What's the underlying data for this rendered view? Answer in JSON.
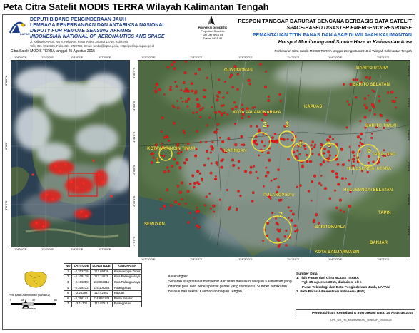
{
  "page_title": "Peta Citra Satelit MODIS TERRA Wilayah Kalimantan Tengah",
  "header": {
    "logo_text": "LAPAN",
    "institution": {
      "line1": "DEPUTI BIDANG PENGINDERAAN JAUH",
      "line2": "LEMBAGA PENERBANGAN DAN ANTARIKSA NASIONAL",
      "line3": "DEPUTY FOR REMOTE SENSING AFFAIRS",
      "line4": "INDONESIAN NATIONAL OF AERONAUTICS AND SPACE",
      "address1": "Jl. Kalisari LAPAN, NO 8, Pekayon, Pasar Rebo, Jakarta 13710, Indonesia",
      "address2": "Telp. 021-8710065, Faks. 021-8722733, Email: simba@lapan.go.id, Http://pusfatja.lapan.go.id"
    },
    "projection": {
      "title": "PROYEKSI GEODETIK",
      "line1": "Projection Geodetic",
      "line2": "DATUM WGS 84",
      "line3": "Datum WGS 84"
    },
    "response": {
      "line1": "RESPON TANGGAP DARURAT BENCANA BERBASIS DATA SATELIT",
      "line2": "SPACE-BASED DISASTER EMERGENCY RESPONSE",
      "line3": "PEMANTAUAN TITIK PANAS DAN ASAP DI WILAYAH KALIMANTAN",
      "line4": "Hotspot Monitoring and Smoke Haze in Kalimantan Area"
    }
  },
  "left_map": {
    "caption": "Citra Satelit MODIS TERRA tanggal 25 Agustus 2015",
    "top_ticks": [
      "108°0'0\"E",
      "111°0'0\"E",
      "114°0'0\"E",
      "117°0'0\"E"
    ],
    "bottom_ticks": [
      "108°0'0\"E",
      "111°0'0\"E",
      "114°0'0\"E",
      "117°0'0\"E"
    ],
    "left_ticks": [
      "3°0'0\"N",
      "0°0'0\"",
      "3°0'0\"S"
    ]
  },
  "right_map": {
    "caption": "Perbesaran Citra Satelit MODIS TERRA  tanggal 25 Agustus 2015 di Wilayah Kalimantan Tengah",
    "top_ticks": [
      "112°30'0\"E",
      "113°0'0\"E",
      "113°30'0\"E",
      "114°0'0\"E",
      "114°30'0\"E",
      "115°0'0\"E"
    ],
    "bottom_ticks": [
      "112°30'0\"E",
      "113°0'0\"E",
      "113°30'0\"E",
      "114°0'0\"E",
      "114°30'0\"E",
      "115°0'0\"E"
    ],
    "left_ticks": [
      "0°30'0\"S",
      "1°0'0\"S",
      "1°30'0\"S",
      "2°0'0\"S",
      "2°30'0\"S",
      "3°0'0\"S"
    ],
    "right_ticks": [
      "0°30'0\"S",
      "1°0'0\"S",
      "1°30'0\"S",
      "2°0'0\"S",
      "2°30'0\"S",
      "3°0'0\"S"
    ],
    "place_labels": [
      "GUNUNGMAS",
      "BARITO UTARA",
      "BARITO SELATAN",
      "KAPUAS",
      "KOTA PALANGKARAYA",
      "BARITO TIMUR",
      "KOTAWARINGIN TIMUR",
      "KATINGAN",
      "TABALONG",
      "HULUSUNGAI UTARA",
      "HULUSUNGAI SELATAN",
      "PULANGPISAU",
      "SERUYAN",
      "TAPIN",
      "BARITOKUALA",
      "BANJAR",
      "KOTA BANJARMASIN"
    ],
    "circle_numbers": [
      "1",
      "2",
      "3",
      "4",
      "5",
      "6",
      "7"
    ]
  },
  "legend": {
    "admin_label": "Peta Batas Administrasi (dari BIG)",
    "scale_values": [
      "0",
      "15",
      "30",
      "60"
    ],
    "scale_unit": "Kilometers"
  },
  "points_table": {
    "headers": [
      "NO",
      "LATITUDE",
      "LONGITUDE",
      "KABUPATEN"
    ],
    "rows": [
      [
        "1",
        "-2.313775",
        "112.69838",
        "Kotawaringin Timur"
      ],
      [
        "2",
        "-2.109138",
        "113.74675",
        "Kota Palangkaraya"
      ],
      [
        "3",
        "-2.106858",
        "113.963015",
        "Kota Palangkaraya"
      ],
      [
        "4",
        "-2.319212",
        "114.108253",
        "Pulangpisau"
      ],
      [
        "5",
        "-2.26398",
        "114.42382",
        "Kapuas"
      ],
      [
        "6",
        "-2.388141",
        "114.892143",
        "Barito Selatan"
      ],
      [
        "7",
        "-3.11306",
        "113.87511",
        "Pulangpisau"
      ]
    ]
  },
  "keterangan": {
    "title": "Keterangan:",
    "text": "Sebaran asap terlihat menyebar dan telah meluas di wilayah Kalimantan yang ditandai pula oleh beberapa titik panas yang terdeteksi. Sumber kebakaran berasal dari sekitar Kalimantan bagian Tengah."
  },
  "sumber": {
    "title": "Sumber Data:",
    "item1_title": "1. Titik Panas dari Citra MODIS TERRA",
    "item1_line2": "Tgl: 25 Agustus 2015, diakuisisi oleh",
    "item1_line3": "Pusat Teknologi dan Data Penginderaan Jauh, LAPAN",
    "item2": "2. Peta Batas Administrasi Indonesia (BIG)"
  },
  "pemutakhiran": "Pemutakhiran, Kompilasi & Interpretasi Data: 25 Agustus 2015",
  "file_name": "LPN_GR_HS_KALIMANTAN_TENGAH_20150825",
  "colors": {
    "hotspot": "#e0201c",
    "circle": "#f0e23a",
    "blue_text": "#1a62c9",
    "navy_text": "#1d3d8a"
  }
}
